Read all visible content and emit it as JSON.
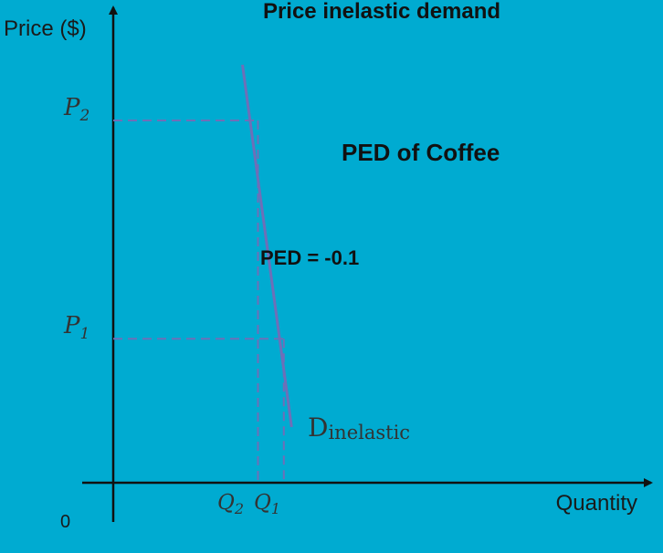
{
  "chart_data": {
    "type": "line",
    "title": "Price inelastic demand",
    "xlabel": "Quantity",
    "ylabel": "Price ($)",
    "origin_label": "0",
    "annotations": {
      "subtitle": "PED of Coffee",
      "ped": "PED = -0.1"
    },
    "series": [
      {
        "name": "Dinelastic",
        "label_main": "D",
        "label_sub": "inelastic",
        "color": "#6E6FB8",
        "points": [
          {
            "x": 2.5,
            "y": 9.0
          },
          {
            "x": 3.45,
            "y": 1.2
          }
        ]
      }
    ],
    "markers": {
      "p2": {
        "main": "P",
        "sub": "2",
        "x": 2.8,
        "y": 7.8
      },
      "p1": {
        "main": "P",
        "sub": "1",
        "x": 3.3,
        "y": 3.1
      },
      "q2": {
        "main": "Q",
        "sub": "2"
      },
      "q1": {
        "main": "Q",
        "sub": "1"
      }
    },
    "xlim": [
      0,
      10
    ],
    "ylim": [
      0,
      10
    ],
    "grid": false,
    "colors": {
      "background": "#00ABD1",
      "axis": "#111111",
      "guide": "#6E6FB8",
      "demand": "#6E6FB8"
    }
  }
}
